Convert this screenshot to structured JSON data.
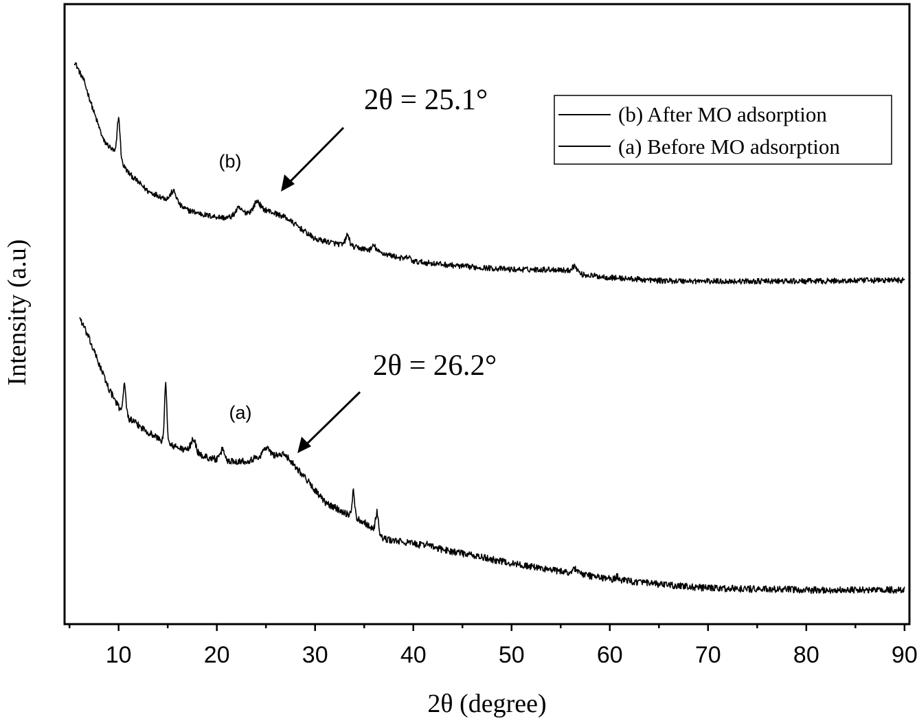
{
  "chart_data": {
    "type": "line",
    "title": "",
    "xlabel": "2θ (degree)",
    "ylabel": "Intensity (a.u)",
    "xlim": [
      4.5,
      90.5
    ],
    "ylim": [
      0,
      100
    ],
    "y_ticks_shown": false,
    "x_ticks": [
      10,
      20,
      30,
      40,
      50,
      60,
      70,
      80,
      90
    ],
    "x_tick_labels": [
      "10",
      "20",
      "30",
      "40",
      "50",
      "60",
      "70",
      "80",
      "90"
    ],
    "legend": {
      "placement": "top-right",
      "entries": [
        "(b) After MO adsorption",
        "(a) Before MO adsorption"
      ]
    },
    "series": [
      {
        "name": "(b) After MO adsorption",
        "label": "(b)",
        "color": "#000000",
        "noise": 0.45,
        "baseline": [
          [
            5.5,
            90.8
          ],
          [
            6.5,
            87.5
          ],
          [
            7.5,
            82.5
          ],
          [
            8.5,
            77.9
          ],
          [
            9.5,
            76.3
          ],
          [
            11,
            72.8
          ],
          [
            13,
            69.8
          ],
          [
            15,
            68.5
          ],
          [
            17,
            66.8
          ],
          [
            19,
            65.9
          ],
          [
            21,
            65.5
          ],
          [
            23,
            66.4
          ],
          [
            25,
            66.8
          ],
          [
            27,
            65.6
          ],
          [
            30,
            62.1
          ],
          [
            33,
            61.1
          ],
          [
            36,
            60.2
          ],
          [
            40,
            58.5
          ],
          [
            45,
            57.7
          ],
          [
            50,
            57.2
          ],
          [
            55,
            57.2
          ],
          [
            57,
            56.4
          ],
          [
            60,
            55.9
          ],
          [
            65,
            55.4
          ],
          [
            70,
            55.3
          ],
          [
            80,
            55.3
          ],
          [
            90,
            55.5
          ]
        ],
        "peaks": [
          [
            10.0,
            6.5,
            0.15
          ],
          [
            15.6,
            1.8,
            0.3
          ],
          [
            22.2,
            1.0,
            0.3
          ],
          [
            24.1,
            1.6,
            0.3
          ],
          [
            33.3,
            1.7,
            0.2
          ],
          [
            36.0,
            0.8,
            0.2
          ],
          [
            39.5,
            0.5,
            0.2
          ],
          [
            56.4,
            1.1,
            0.3
          ]
        ]
      },
      {
        "name": "(a) Before MO adsorption",
        "label": "(a)",
        "color": "#000000",
        "noise": 0.55,
        "baseline": [
          [
            6,
            49.6
          ],
          [
            7,
            46.0
          ],
          [
            8,
            42.0
          ],
          [
            9,
            38.0
          ],
          [
            10,
            35.0
          ],
          [
            11,
            33.2
          ],
          [
            13,
            31.0
          ],
          [
            15,
            29.0
          ],
          [
            17,
            28.0
          ],
          [
            19,
            26.9
          ],
          [
            21,
            26.3
          ],
          [
            23,
            26.3
          ],
          [
            25,
            27.3
          ],
          [
            27,
            27.3
          ],
          [
            29,
            23.6
          ],
          [
            31,
            19.6
          ],
          [
            33,
            18.0
          ],
          [
            35,
            16.5
          ],
          [
            37,
            13.7
          ],
          [
            40,
            13.0
          ],
          [
            45,
            11.4
          ],
          [
            50,
            9.8
          ],
          [
            55,
            8.5
          ],
          [
            60,
            7.3
          ],
          [
            65,
            6.4
          ],
          [
            70,
            5.8
          ],
          [
            80,
            5.5
          ],
          [
            90,
            5.5
          ]
        ],
        "peaks": [
          [
            10.6,
            4.5,
            0.15
          ],
          [
            14.8,
            9.5,
            0.12
          ],
          [
            17.6,
            2.2,
            0.25
          ],
          [
            20.6,
            1.8,
            0.2
          ],
          [
            25.0,
            1.2,
            0.3
          ],
          [
            33.9,
            4.3,
            0.12
          ],
          [
            36.3,
            3.3,
            0.15
          ],
          [
            41.5,
            0.6,
            0.2
          ],
          [
            56.5,
            0.8,
            0.3
          ],
          [
            60.8,
            0.5,
            0.2
          ]
        ]
      }
    ],
    "annotations": [
      {
        "text": "2θ = 25.1°",
        "x": 25.1,
        "series": "(b) After MO adsorption"
      },
      {
        "text": "2θ = 26.2°",
        "x": 26.2,
        "series": "(a) Before MO adsorption"
      }
    ]
  }
}
